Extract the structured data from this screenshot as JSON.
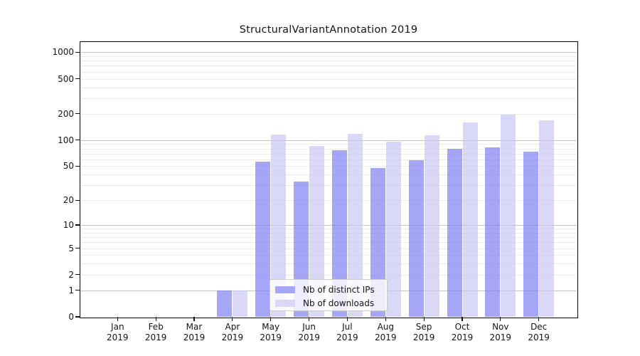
{
  "chart_data": {
    "type": "bar",
    "title": "StructuralVariantAnnotation 2019",
    "categories": [
      "Jan",
      "Feb",
      "Mar",
      "Apr",
      "May",
      "Jun",
      "Jul",
      "Aug",
      "Sep",
      "Oct",
      "Nov",
      "Dec"
    ],
    "year": "2019",
    "series": [
      {
        "name": "Nb of distinct IPs",
        "values": [
          0,
          0,
          0,
          1,
          56,
          33,
          76,
          48,
          59,
          79,
          82,
          73
        ],
        "bar_color": "rgba(118,118,243,0.65)",
        "swatch_color": "#a6a6f7"
      },
      {
        "name": "Nb of downloads",
        "values": [
          0,
          0,
          0,
          1,
          115,
          85,
          118,
          96,
          114,
          158,
          195,
          168
        ],
        "bar_color": "rgba(197,197,243,0.65)",
        "swatch_color": "#d9d9f7"
      }
    ],
    "y_ticks": [
      0,
      1,
      2,
      5,
      10,
      20,
      50,
      100,
      200,
      500,
      1000
    ],
    "scale": "log10(1+x)",
    "ylim": [
      0,
      1300
    ],
    "grid": true,
    "legend_position": "lower-center",
    "colors": {
      "major_grid": "#c4c4c4",
      "minor_grid": "#ececec",
      "axis": "#000000",
      "text": "#141414",
      "background": "#ffffff"
    }
  }
}
